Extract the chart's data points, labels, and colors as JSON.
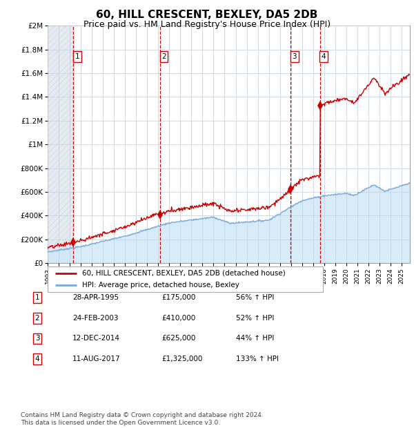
{
  "title": "60, HILL CRESCENT, BEXLEY, DA5 2DB",
  "subtitle": "Price paid vs. HM Land Registry's House Price Index (HPI)",
  "title_fontsize": 11,
  "subtitle_fontsize": 9,
  "ylim": [
    0,
    2000000
  ],
  "xlim_start": 1993.0,
  "xlim_end": 2025.75,
  "yticks": [
    0,
    200000,
    400000,
    600000,
    800000,
    1000000,
    1200000,
    1400000,
    1600000,
    1800000,
    2000000
  ],
  "ytick_labels": [
    "£0",
    "£200K",
    "£400K",
    "£600K",
    "£800K",
    "£1M",
    "£1.2M",
    "£1.4M",
    "£1.6M",
    "£1.8M",
    "£2M"
  ],
  "xtick_years": [
    1993,
    1994,
    1995,
    1996,
    1997,
    1998,
    1999,
    2000,
    2001,
    2002,
    2003,
    2004,
    2005,
    2006,
    2007,
    2008,
    2009,
    2010,
    2011,
    2012,
    2013,
    2014,
    2015,
    2016,
    2017,
    2018,
    2019,
    2020,
    2021,
    2022,
    2023,
    2024,
    2025
  ],
  "sale_dates_decimal": [
    1995.32,
    2003.15,
    2014.95,
    2017.61
  ],
  "sale_prices": [
    175000,
    410000,
    625000,
    1325000
  ],
  "sale_labels": [
    "1",
    "2",
    "3",
    "4"
  ],
  "hpi_color": "#7aaadd",
  "sale_color": "#cc0000",
  "hpi_fill_color": "#d0e8f8",
  "grid_color": "#c8d4e0",
  "background_color": "#ffffff",
  "legend_entries": [
    "60, HILL CRESCENT, BEXLEY, DA5 2DB (detached house)",
    "HPI: Average price, detached house, Bexley"
  ],
  "table_rows": [
    [
      "1",
      "28-APR-1995",
      "£175,000",
      "56% ↑ HPI"
    ],
    [
      "2",
      "24-FEB-2003",
      "£410,000",
      "52% ↑ HPI"
    ],
    [
      "3",
      "12-DEC-2014",
      "£625,000",
      "44% ↑ HPI"
    ],
    [
      "4",
      "11-AUG-2017",
      "£1,325,000",
      "133% ↑ HPI"
    ]
  ],
  "footnote": "Contains HM Land Registry data © Crown copyright and database right 2024.\nThis data is licensed under the Open Government Licence v3.0."
}
